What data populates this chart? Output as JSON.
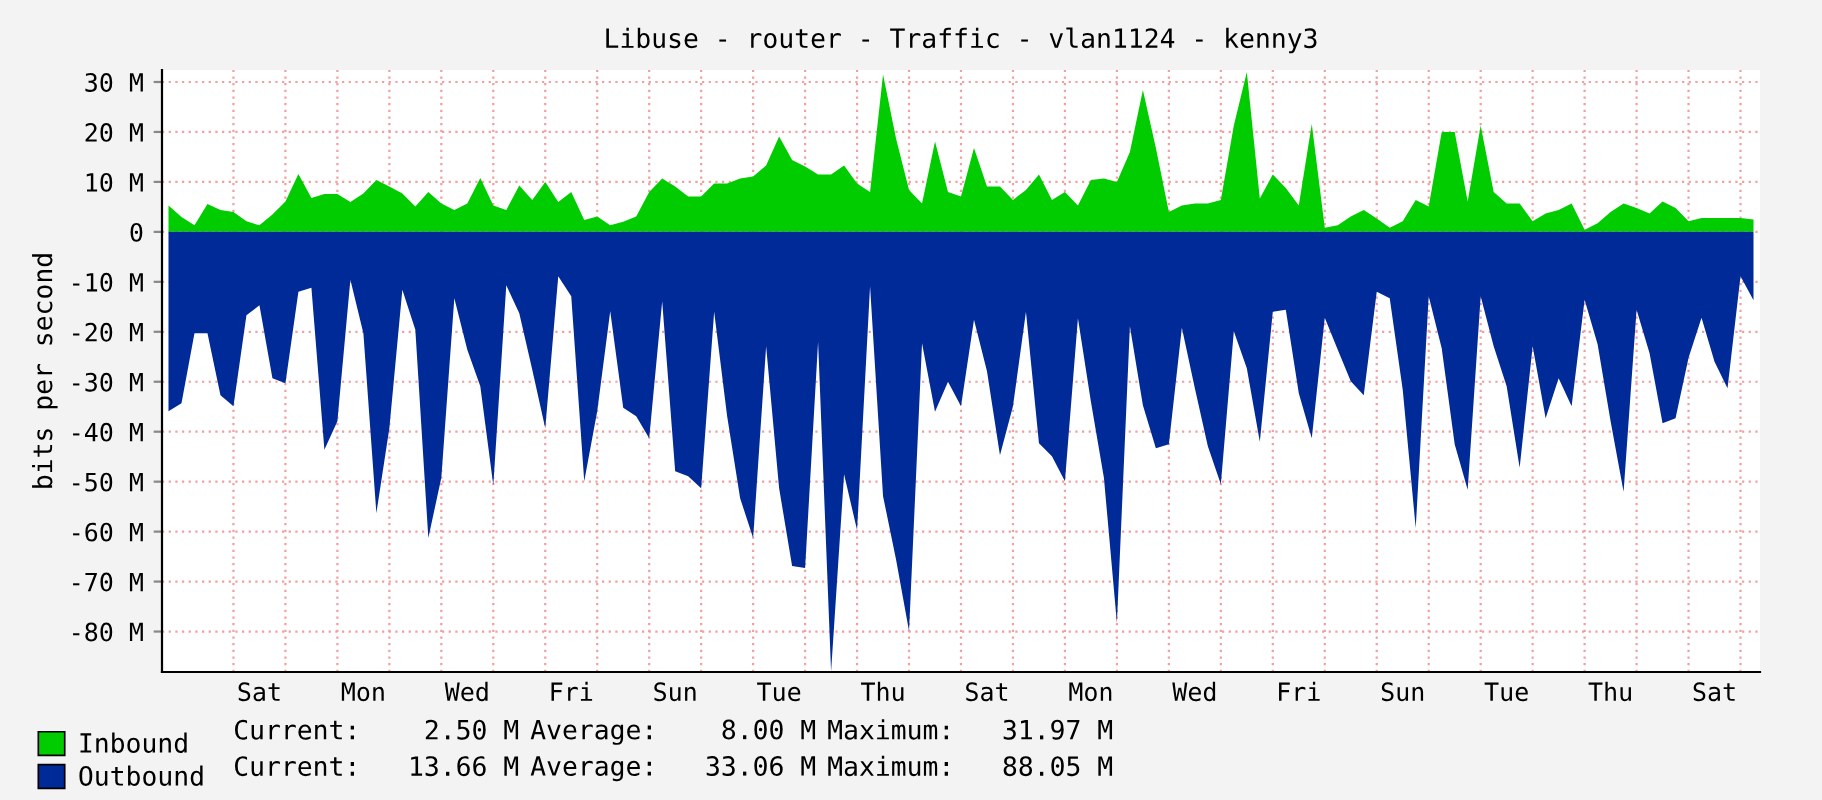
{
  "chart_data": {
    "type": "area",
    "title": "Libuse - router - Traffic - vlan1124 - kenny3",
    "ylabel": "bits per second",
    "categories": [
      null,
      null,
      null,
      null,
      null,
      null,
      null,
      "Sat",
      null,
      null,
      null,
      null,
      null,
      null,
      null,
      "Mon",
      null,
      null,
      null,
      null,
      null,
      null,
      null,
      "Wed",
      null,
      null,
      null,
      null,
      null,
      null,
      null,
      "Fri",
      null,
      null,
      null,
      null,
      null,
      null,
      null,
      "Sun",
      null,
      null,
      null,
      null,
      null,
      null,
      null,
      "Tue",
      null,
      null,
      null,
      null,
      null,
      null,
      null,
      "Thu",
      null,
      null,
      null,
      null,
      null,
      null,
      null,
      "Sat",
      null,
      null,
      null,
      null,
      null,
      null,
      null,
      "Mon",
      null,
      null,
      null,
      null,
      null,
      null,
      null,
      "Wed",
      null,
      null,
      null,
      null,
      null,
      null,
      null,
      "Fri",
      null,
      null,
      null,
      null,
      null,
      null,
      null,
      "Sun",
      null,
      null,
      null,
      null,
      null,
      null,
      null,
      "Tue",
      null,
      null,
      null,
      null,
      null,
      null,
      null,
      "Thu",
      null,
      null,
      null,
      null,
      null,
      null,
      null,
      "Sat",
      null,
      null,
      null
    ],
    "series": [
      {
        "name": "Inbound",
        "color": "#00cc00",
        "values": [
          5.3,
          3.0,
          1.3,
          5.6,
          4.4,
          4.0,
          2.1,
          1.3,
          3.5,
          6.1,
          11.6,
          6.8,
          7.6,
          7.6,
          6.0,
          7.7,
          10.4,
          9.1,
          7.7,
          5.1,
          8.0,
          5.7,
          4.4,
          5.7,
          10.8,
          5.3,
          4.4,
          9.3,
          6.4,
          10.0,
          6.0,
          8,
          2.4,
          3.1,
          1.3,
          2,
          3.1,
          8,
          10.7,
          9.1,
          7.1,
          7.1,
          9.7,
          9.7,
          10.7,
          11.1,
          13.3,
          19.1,
          14.4,
          13.1,
          11.5,
          11.5,
          13.3,
          9.7,
          8,
          31.5,
          18.7,
          8.4,
          5.7,
          18.1,
          8,
          7.1,
          16.8,
          9.1,
          9.1,
          6.4,
          8.4,
          11.5,
          6.4,
          8,
          5.3,
          10.4,
          10.7,
          10,
          16,
          28.4,
          16.8,
          4,
          5.3,
          5.7,
          5.7,
          6.4,
          21.3,
          32.0,
          6.7,
          11.5,
          8.8,
          5.3,
          21.6,
          0.8,
          1.3,
          3.1,
          4.4,
          2.7,
          0.8,
          2.1,
          6.4,
          5.1,
          20,
          20,
          6.1,
          21.3,
          8,
          5.7,
          5.7,
          2.1,
          3.7,
          4.4,
          5.7,
          0.4,
          1.7,
          4,
          5.7,
          4.8,
          3.7,
          6.1,
          4.8,
          2.1,
          2.8,
          2.8,
          2.8,
          2.8,
          2.5
        ]
      },
      {
        "name": "Outbound",
        "color": "#002a97",
        "values": [
          -35.9,
          -34.3,
          -20.3,
          -20.3,
          -32.7,
          -34.9,
          -16.7,
          -14.7,
          -29.3,
          -30.3,
          -12,
          -11.2,
          -43.6,
          -37.9,
          -9.6,
          -20.3,
          -56.3,
          -39.3,
          -11.6,
          -19.6,
          -61.3,
          -49.2,
          -13.3,
          -23.6,
          -30.9,
          -50.7,
          -10.7,
          -16.3,
          -27.6,
          -39.3,
          -8.9,
          -12.9,
          -49.9,
          -35.9,
          -15.9,
          -35.2,
          -36.9,
          -41.3,
          -13.9,
          -47.9,
          -48.9,
          -51.3,
          -16,
          -36.9,
          -53.3,
          -61.3,
          -22.9,
          -51.3,
          -66.9,
          -67.3,
          -22,
          -88.0,
          -48.5,
          -59.7,
          -10.9,
          -52.9,
          -65.6,
          -79.9,
          -22.3,
          -36,
          -30,
          -34.9,
          -17.6,
          -27.9,
          -44.7,
          -34.9,
          -16,
          -42.3,
          -44.9,
          -49.9,
          -17.3,
          -34,
          -49.2,
          -78.3,
          -18.9,
          -34.7,
          -43.3,
          -42.5,
          -19.2,
          -31.3,
          -42.9,
          -50.5,
          -19.9,
          -27.3,
          -42,
          -16,
          -15.6,
          -32.3,
          -41.3,
          -17.2,
          -23.6,
          -29.9,
          -32.7,
          -12,
          -13.3,
          -31.6,
          -59.3,
          -12.9,
          -23.3,
          -42.5,
          -51.6,
          -12.9,
          -22.9,
          -30.9,
          -47.2,
          -22.9,
          -37.3,
          -29.3,
          -34.9,
          -13.6,
          -22.5,
          -37.9,
          -52,
          -15.6,
          -24.3,
          -38.3,
          -37.3,
          -25.2,
          -17.2,
          -26,
          -31.3,
          -8.9,
          -13.7
        ]
      }
    ],
    "ylim": [
      -88.1,
      32.4
    ],
    "yticks": [
      {
        "value": 30,
        "label": "30 M"
      },
      {
        "value": 20,
        "label": "20 M"
      },
      {
        "value": 10,
        "label": "10 M"
      },
      0,
      {
        "value": -10,
        "label": "-10 M"
      },
      {
        "value": -20,
        "label": "-20 M"
      },
      {
        "value": -30,
        "label": "-30 M"
      },
      {
        "value": -40,
        "label": "-40 M"
      },
      {
        "value": -50,
        "label": "-50 M"
      },
      {
        "value": -60,
        "label": "-60 M"
      },
      {
        "value": -70,
        "label": "-70 M"
      },
      {
        "value": -80,
        "label": "-80 M"
      }
    ],
    "grid": true,
    "legend": "bottom left",
    "annotations": [
      "Current:    2.50 M",
      "Average:    8.00 M",
      "Maximum:   31.97 M",
      "Current:   13.66 M",
      "Average:   33.06 M",
      "Maximum:   88.05 M"
    ]
  }
}
